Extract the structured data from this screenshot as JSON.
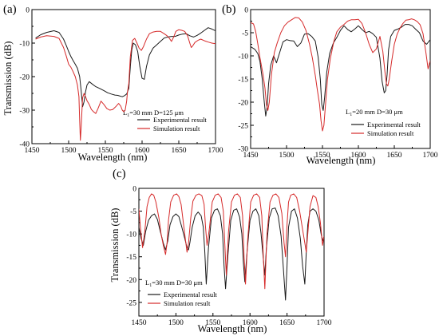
{
  "colors": {
    "experimental": "#1a1a1a",
    "simulation": "#d62a2a",
    "axis": "#000000",
    "background": "#ffffff"
  },
  "chart_data": [
    {
      "type": "line",
      "panel": "(a)",
      "annotation": "L1=30 mm D=125 μm",
      "annotation_parts": {
        "L": "L",
        "sub": "1",
        "rest": "=30 mm D=125 μm"
      },
      "xlabel": "Wavelength (nm)",
      "ylabel": "Transmission (dB)",
      "xlim": [
        1450,
        1700
      ],
      "ylim": [
        -40,
        0
      ],
      "xticks": [
        1450,
        1500,
        1550,
        1600,
        1650,
        1700
      ],
      "yticks": [
        -40,
        -30,
        -20,
        -10,
        0
      ],
      "legend_position": "lower-right",
      "series": [
        {
          "name": "Experimental result",
          "x": [
            1455,
            1462,
            1470,
            1480,
            1487,
            1493,
            1497,
            1500,
            1503,
            1506,
            1509,
            1512,
            1515,
            1517,
            1519,
            1521,
            1523,
            1525,
            1528,
            1532,
            1537,
            1542,
            1548,
            1553,
            1558,
            1563,
            1567,
            1570,
            1573,
            1576,
            1579,
            1582,
            1584,
            1586,
            1588,
            1591,
            1594,
            1597,
            1600,
            1603,
            1606,
            1610,
            1615,
            1620,
            1625,
            1630,
            1635,
            1640,
            1645,
            1650,
            1655,
            1660,
            1665,
            1670,
            1675,
            1680,
            1685,
            1690,
            1695,
            1700
          ],
          "y": [
            -8.5,
            -7.5,
            -6.8,
            -6.3,
            -6.8,
            -8.8,
            -10.8,
            -12.5,
            -14,
            -15.2,
            -16.3,
            -17.5,
            -20,
            -24,
            -29,
            -27.5,
            -24.5,
            -22.5,
            -21.5,
            -22.2,
            -23,
            -23.5,
            -24.2,
            -24.8,
            -25.2,
            -25.5,
            -25.6,
            -25.8,
            -26,
            -25.7,
            -25.2,
            -23.5,
            -17,
            -12,
            -10,
            -10.5,
            -12.5,
            -17,
            -20.5,
            -20.8,
            -17,
            -13.5,
            -11.5,
            -10.5,
            -9.5,
            -8.5,
            -8.2,
            -8,
            -8,
            -7.6,
            -7.3,
            -7.2,
            -7.8,
            -8.2,
            -7.7,
            -7,
            -6.2,
            -5.4,
            -5.8,
            -6.3
          ]
        },
        {
          "name": "Simulation result",
          "x": [
            1455,
            1462,
            1470,
            1480,
            1487,
            1493,
            1497,
            1500,
            1503,
            1506,
            1509,
            1512,
            1514,
            1515,
            1516,
            1517,
            1518,
            1519,
            1521,
            1523,
            1525,
            1528,
            1531,
            1534,
            1537,
            1540,
            1544,
            1548,
            1552,
            1556,
            1560,
            1564,
            1568,
            1571,
            1573,
            1575,
            1577,
            1579,
            1580,
            1582,
            1584,
            1587,
            1590,
            1593,
            1596,
            1599,
            1602,
            1606,
            1610,
            1615,
            1620,
            1625,
            1630,
            1634,
            1637,
            1640,
            1643,
            1646,
            1650,
            1654,
            1658,
            1662,
            1665,
            1667,
            1669,
            1672,
            1676,
            1680,
            1685,
            1690,
            1695,
            1700
          ],
          "y": [
            -8.8,
            -8.2,
            -7.8,
            -8,
            -8.6,
            -11.3,
            -14,
            -16.3,
            -17.2,
            -18.5,
            -20,
            -22.5,
            -26,
            -33,
            -39,
            -35.5,
            -30.5,
            -26.3,
            -25,
            -26,
            -27.2,
            -28.3,
            -29.8,
            -30.5,
            -31,
            -29.5,
            -27.3,
            -28.3,
            -29.5,
            -30,
            -29.8,
            -29,
            -28,
            -28.8,
            -30,
            -30.5,
            -30,
            -27.3,
            -24.8,
            -22,
            -14,
            -9.2,
            -8.6,
            -10,
            -11.5,
            -12.2,
            -11,
            -8.8,
            -7.2,
            -6.7,
            -6.5,
            -6.5,
            -7.2,
            -7.8,
            -8.5,
            -9.5,
            -8.2,
            -6.5,
            -6,
            -6.2,
            -6.5,
            -7.8,
            -10,
            -11.3,
            -10.8,
            -9.8,
            -9.2,
            -8.8,
            -9.3,
            -9.7,
            -10,
            -10.2
          ]
        }
      ]
    },
    {
      "type": "line",
      "panel": "(b)",
      "annotation": "L1=20 mm D=30 μm",
      "annotation_parts": {
        "L": "L",
        "sub": "1",
        "rest": "=20 mm D=30 μm"
      },
      "xlabel": "Wavelength (nm)",
      "ylabel": "",
      "xlim": [
        1450,
        1700
      ],
      "ylim": [
        -30,
        0
      ],
      "xticks": [
        1450,
        1500,
        1550,
        1600,
        1650,
        1700
      ],
      "yticks": [
        -30,
        -25,
        -20,
        -15,
        -10,
        -5,
        0
      ],
      "legend_position": "lower-right",
      "series": [
        {
          "name": "Experimental result",
          "x": [
            1450,
            1456,
            1460,
            1463,
            1466,
            1469,
            1471,
            1473,
            1475,
            1478,
            1482,
            1486,
            1490,
            1495,
            1500,
            1505,
            1510,
            1515,
            1520,
            1525,
            1530,
            1535,
            1540,
            1544,
            1547,
            1549,
            1551,
            1553,
            1556,
            1560,
            1565,
            1570,
            1575,
            1580,
            1585,
            1590,
            1595,
            1600,
            1605,
            1610,
            1615,
            1620,
            1625,
            1630,
            1633,
            1636,
            1638,
            1640,
            1642,
            1645,
            1650,
            1655,
            1660,
            1665,
            1670,
            1675,
            1680,
            1685,
            1690,
            1695,
            1700
          ],
          "y": [
            -8,
            -8.6,
            -9.5,
            -11.2,
            -14.8,
            -20,
            -23,
            -21,
            -16,
            -12,
            -10,
            -11.5,
            -9.5,
            -7,
            -6.5,
            -6.7,
            -6.8,
            -8,
            -7.2,
            -5.3,
            -5.2,
            -5.8,
            -6.8,
            -10.3,
            -15,
            -20.5,
            -21.8,
            -19,
            -13.5,
            -9.5,
            -7.3,
            -6,
            -4.5,
            -3.5,
            -4.3,
            -4.8,
            -4.2,
            -3.5,
            -4.3,
            -5,
            -4.7,
            -5.2,
            -6,
            -10.5,
            -15.5,
            -18,
            -17.5,
            -14,
            -8.7,
            -5.8,
            -4.5,
            -4.2,
            -3.8,
            -3.2,
            -3.2,
            -3.5,
            -4.3,
            -5,
            -6.8,
            -7.5,
            -6.5
          ]
        },
        {
          "name": "Simulation result",
          "x": [
            1450,
            1454,
            1457,
            1460,
            1463,
            1467,
            1470,
            1472,
            1474,
            1476,
            1479,
            1483,
            1487,
            1492,
            1497,
            1502,
            1507,
            1512,
            1517,
            1522,
            1527,
            1532,
            1536,
            1540,
            1543,
            1546,
            1548,
            1550,
            1552,
            1554,
            1557,
            1561,
            1566,
            1570,
            1575,
            1580,
            1585,
            1590,
            1595,
            1600,
            1605,
            1610,
            1615,
            1620,
            1625,
            1630,
            1634,
            1637,
            1639,
            1641,
            1643,
            1646,
            1650,
            1654,
            1658,
            1662,
            1666,
            1670,
            1674,
            1678,
            1682,
            1686,
            1690,
            1694,
            1697,
            1700
          ],
          "y": [
            -2.8,
            -3.1,
            -4.7,
            -7.4,
            -10.4,
            -13.8,
            -17,
            -20.5,
            -21.8,
            -20,
            -14,
            -9.3,
            -7.2,
            -5,
            -3.5,
            -2.7,
            -2.2,
            -1.7,
            -1.8,
            -2.7,
            -4.5,
            -7.5,
            -10.5,
            -14.2,
            -17.5,
            -20.5,
            -24,
            -26.2,
            -25,
            -21,
            -15,
            -10.5,
            -6.8,
            -4.8,
            -3.8,
            -3.2,
            -2.5,
            -2.2,
            -2.2,
            -2.1,
            -3,
            -5,
            -7.5,
            -9.3,
            -8.5,
            -5.8,
            -9,
            -13.5,
            -16,
            -16.5,
            -15,
            -11.5,
            -7.5,
            -5.3,
            -4,
            -3,
            -2.3,
            -2.2,
            -2,
            -2.2,
            -2.6,
            -3.3,
            -5.2,
            -9.3,
            -12.8,
            -11
          ]
        }
      ]
    },
    {
      "type": "line",
      "panel": "(c)",
      "annotation": "L1=30 mm D=30 μm",
      "annotation_parts": {
        "L": "L",
        "sub": "1",
        "rest": "=30 mm D=30 μm"
      },
      "xlabel": "Wavelength (nm)",
      "ylabel": "Transmission (dB)",
      "xlim": [
        1450,
        1700
      ],
      "ylim": [
        -28,
        0
      ],
      "xticks": [
        1450,
        1500,
        1550,
        1600,
        1650,
        1700
      ],
      "yticks": [
        -25,
        -20,
        -15,
        -10,
        -5,
        0
      ],
      "legend_position": "lower-left",
      "series": [
        {
          "name": "Experimental result",
          "x": [
            1450,
            1453,
            1456,
            1459,
            1463,
            1467,
            1471,
            1475,
            1479,
            1483,
            1486,
            1489,
            1492,
            1496,
            1500,
            1504,
            1508,
            1512,
            1515,
            1517,
            1519,
            1522,
            1526,
            1530,
            1534,
            1537,
            1539,
            1541,
            1544,
            1548,
            1552,
            1556,
            1560,
            1563,
            1565,
            1567,
            1570,
            1574,
            1578,
            1582,
            1586,
            1589,
            1591,
            1593,
            1596,
            1600,
            1604,
            1608,
            1612,
            1615,
            1618,
            1620,
            1622,
            1626,
            1630,
            1634,
            1638,
            1642,
            1645,
            1648,
            1650,
            1652,
            1656,
            1660,
            1664,
            1668,
            1671,
            1674,
            1676,
            1678,
            1681,
            1685,
            1689,
            1693,
            1696,
            1698,
            1700
          ],
          "y": [
            -8.5,
            -11,
            -12.5,
            -9.5,
            -7,
            -6,
            -5.6,
            -6.8,
            -9.5,
            -12,
            -13.5,
            -11.5,
            -8,
            -6.2,
            -5.6,
            -6.2,
            -8.5,
            -11,
            -13,
            -13.5,
            -11.8,
            -8.5,
            -6,
            -5.2,
            -6,
            -8.5,
            -14,
            -21,
            -13,
            -6.5,
            -4.8,
            -4.5,
            -6,
            -10,
            -17,
            -22,
            -15,
            -7,
            -4.8,
            -4.5,
            -6.3,
            -10,
            -16,
            -20.5,
            -14,
            -7,
            -5,
            -4.5,
            -6,
            -10,
            -15.5,
            -19,
            -13.5,
            -6.5,
            -4.5,
            -4.3,
            -6,
            -10.5,
            -17.5,
            -24.5,
            -17,
            -8.5,
            -5,
            -4.5,
            -6.5,
            -11,
            -17,
            -21,
            -14,
            -8,
            -5,
            -4.5,
            -5,
            -7,
            -10,
            -11.5,
            -10.5
          ]
        },
        {
          "name": "Simulation result",
          "x": [
            1450,
            1452,
            1455,
            1458,
            1461,
            1464,
            1467,
            1470,
            1473,
            1477,
            1480,
            1483,
            1486,
            1488,
            1490,
            1493,
            1497,
            1501,
            1504,
            1507,
            1510,
            1513,
            1515,
            1517,
            1520,
            1523,
            1527,
            1531,
            1535,
            1538,
            1540,
            1542,
            1545,
            1549,
            1553,
            1557,
            1561,
            1564,
            1566,
            1568,
            1571,
            1575,
            1579,
            1583,
            1587,
            1590,
            1592,
            1594,
            1597,
            1601,
            1605,
            1609,
            1613,
            1616,
            1618,
            1620,
            1623,
            1627,
            1631,
            1635,
            1639,
            1643,
            1646,
            1648,
            1650,
            1652,
            1655,
            1659,
            1663,
            1667,
            1671,
            1674,
            1676,
            1678,
            1681,
            1685,
            1689,
            1692,
            1695,
            1698,
            1700
          ],
          "y": [
            -4.5,
            -8.5,
            -13,
            -9.5,
            -4,
            -2,
            -1.2,
            -1.5,
            -3,
            -6.5,
            -10,
            -12.5,
            -14.5,
            -12,
            -7,
            -3,
            -1.5,
            -1.2,
            -1.8,
            -3.5,
            -7.5,
            -11.5,
            -14,
            -12,
            -6.5,
            -2.8,
            -1.5,
            -1.2,
            -1.6,
            -3.5,
            -8.5,
            -12.5,
            -9,
            -3,
            -1.5,
            -1.2,
            -2,
            -5,
            -12,
            -19,
            -9.5,
            -3,
            -1.5,
            -1.2,
            -2,
            -6,
            -15,
            -21,
            -11,
            -3,
            -1.5,
            -1.2,
            -2,
            -6,
            -15,
            -22,
            -10,
            -3,
            -1.5,
            -1.2,
            -2,
            -5.5,
            -12,
            -15,
            -8,
            -3,
            -1.5,
            -1.2,
            -2,
            -5,
            -9,
            -12,
            -14,
            -10,
            -4,
            -1.6,
            -2,
            -4,
            -7.5,
            -12.5,
            -10.5
          ]
        }
      ]
    }
  ]
}
